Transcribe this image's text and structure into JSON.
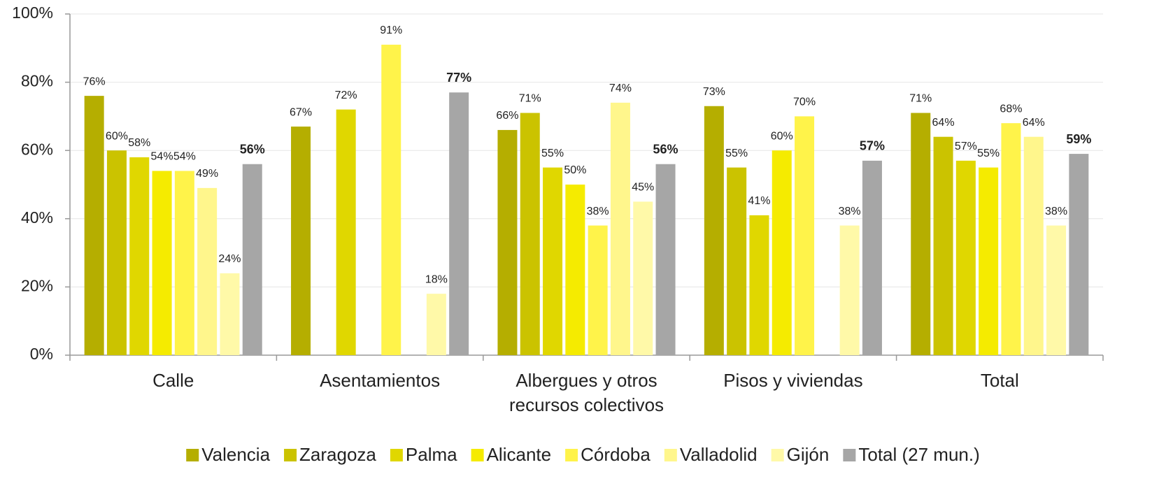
{
  "chart_data": {
    "type": "bar",
    "categories": [
      "Calle",
      "Asentamientos",
      "Albergues y otros recursos colectivos",
      "Pisos y viviendas",
      "Total"
    ],
    "series": [
      {
        "name": "Valencia",
        "color": "#b5ae00",
        "values": [
          76,
          67,
          66,
          73,
          71
        ],
        "value_labels": [
          "76%",
          "67%",
          "66%",
          "73%",
          "71%"
        ]
      },
      {
        "name": "Zaragoza",
        "color": "#cbc300",
        "values": [
          60,
          null,
          71,
          55,
          64
        ],
        "value_labels": [
          "60%",
          null,
          "71%",
          "55%",
          "64%"
        ]
      },
      {
        "name": "Palma",
        "color": "#e0d700",
        "values": [
          58,
          72,
          55,
          41,
          57
        ],
        "value_labels": [
          "58%",
          "72%",
          "55%",
          "41%",
          "57%"
        ]
      },
      {
        "name": "Alicante",
        "color": "#f5eb00",
        "values": [
          54,
          null,
          50,
          60,
          55
        ],
        "value_labels": [
          "54%",
          null,
          "50%",
          "60%",
          "55%"
        ]
      },
      {
        "name": "Córdoba",
        "color": "#fff34a",
        "values": [
          54,
          91,
          38,
          70,
          68
        ],
        "value_labels": [
          "54%",
          "91%",
          "38%",
          "70%",
          "68%"
        ]
      },
      {
        "name": "Valladolid",
        "color": "#fff68c",
        "values": [
          49,
          null,
          74,
          null,
          64
        ],
        "value_labels": [
          "49%",
          null,
          "74%",
          null,
          "64%"
        ]
      },
      {
        "name": "Gijón",
        "color": "#fff9a8",
        "values": [
          24,
          18,
          45,
          38,
          38
        ],
        "value_labels": [
          "24%",
          "18%",
          "45%",
          "38%",
          "38%"
        ]
      },
      {
        "name": "Total (27 mun.)",
        "color": "#a6a6a6",
        "values": [
          56,
          77,
          56,
          57,
          59
        ],
        "value_labels": [
          "56%",
          "77%",
          "56%",
          "57%",
          "59%"
        ]
      }
    ],
    "ylim": [
      0,
      100
    ],
    "yticks": [
      {
        "value": 0,
        "label": "0%"
      },
      {
        "value": 20,
        "label": "20%"
      },
      {
        "value": 40,
        "label": "40%"
      },
      {
        "value": 60,
        "label": "60%"
      },
      {
        "value": 80,
        "label": "80%"
      },
      {
        "value": 100,
        "label": "100%"
      }
    ],
    "grid": true,
    "legend": "bottom"
  }
}
